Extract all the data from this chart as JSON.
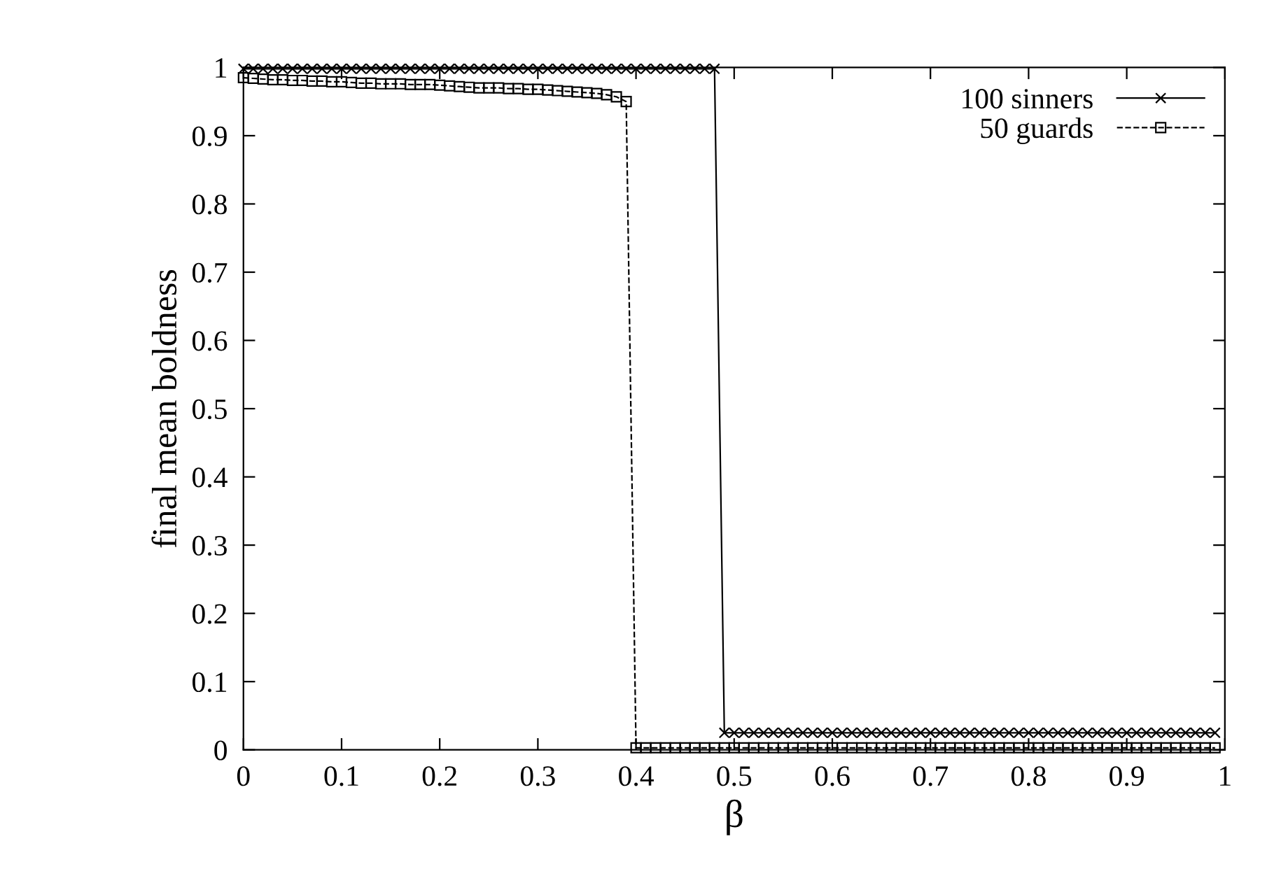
{
  "chart_data": {
    "type": "line",
    "xlabel": "β",
    "ylabel": "final mean boldness",
    "x": [
      0,
      0.01,
      0.02,
      0.03,
      0.04,
      0.05,
      0.06,
      0.07,
      0.08,
      0.09,
      0.1,
      0.11,
      0.12,
      0.13,
      0.14,
      0.15,
      0.16,
      0.17,
      0.18,
      0.19,
      0.2,
      0.21,
      0.22,
      0.23,
      0.24,
      0.25,
      0.26,
      0.27,
      0.28,
      0.29,
      0.3,
      0.31,
      0.32,
      0.33,
      0.34,
      0.35,
      0.36,
      0.37,
      0.38,
      0.39,
      0.4,
      0.41,
      0.42,
      0.43,
      0.44,
      0.45,
      0.46,
      0.47,
      0.48,
      0.49,
      0.5,
      0.51,
      0.52,
      0.53,
      0.54,
      0.55,
      0.56,
      0.57,
      0.58,
      0.59,
      0.6,
      0.61,
      0.62,
      0.63,
      0.64,
      0.65,
      0.66,
      0.67,
      0.68,
      0.69,
      0.7,
      0.71,
      0.72,
      0.73,
      0.74,
      0.75,
      0.76,
      0.77,
      0.78,
      0.79,
      0.8,
      0.81,
      0.82,
      0.83,
      0.84,
      0.85,
      0.86,
      0.87,
      0.88,
      0.89,
      0.9,
      0.91,
      0.92,
      0.93,
      0.94,
      0.95,
      0.96,
      0.97,
      0.98,
      0.99
    ],
    "series": [
      {
        "name": "100 sinners",
        "color": "#000000",
        "marker": "cross",
        "line_style": "solid",
        "values": [
          0.998,
          0.998,
          0.998,
          0.998,
          0.998,
          0.998,
          0.998,
          0.998,
          0.998,
          0.998,
          0.998,
          0.998,
          0.998,
          0.998,
          0.998,
          0.998,
          0.998,
          0.998,
          0.998,
          0.998,
          0.998,
          0.998,
          0.998,
          0.998,
          0.998,
          0.998,
          0.998,
          0.998,
          0.998,
          0.998,
          0.998,
          0.998,
          0.998,
          0.998,
          0.998,
          0.998,
          0.998,
          0.998,
          0.998,
          0.998,
          0.998,
          0.998,
          0.998,
          0.998,
          0.998,
          0.998,
          0.998,
          0.998,
          0.998,
          0.025,
          0.025,
          0.025,
          0.025,
          0.025,
          0.025,
          0.025,
          0.025,
          0.025,
          0.025,
          0.025,
          0.025,
          0.025,
          0.025,
          0.025,
          0.025,
          0.025,
          0.025,
          0.025,
          0.025,
          0.025,
          0.025,
          0.025,
          0.025,
          0.025,
          0.025,
          0.025,
          0.025,
          0.025,
          0.025,
          0.025,
          0.025,
          0.025,
          0.025,
          0.025,
          0.025,
          0.025,
          0.025,
          0.025,
          0.025,
          0.025,
          0.025,
          0.025,
          0.025,
          0.025,
          0.025,
          0.025,
          0.025,
          0.025,
          0.025,
          0.025
        ]
      },
      {
        "name": "50 guards",
        "color": "#000000",
        "marker": "square",
        "line_style": "dashed",
        "values": [
          0.985,
          0.984,
          0.983,
          0.982,
          0.982,
          0.981,
          0.981,
          0.98,
          0.98,
          0.979,
          0.979,
          0.978,
          0.977,
          0.977,
          0.976,
          0.976,
          0.976,
          0.975,
          0.975,
          0.975,
          0.974,
          0.973,
          0.972,
          0.971,
          0.97,
          0.97,
          0.97,
          0.969,
          0.969,
          0.968,
          0.968,
          0.967,
          0.966,
          0.965,
          0.964,
          0.963,
          0.962,
          0.96,
          0.957,
          0.95,
          0.003,
          0.003,
          0.003,
          0.003,
          0.003,
          0.003,
          0.003,
          0.003,
          0.003,
          0.003,
          0.003,
          0.003,
          0.003,
          0.003,
          0.003,
          0.003,
          0.003,
          0.003,
          0.003,
          0.003,
          0.003,
          0.003,
          0.003,
          0.003,
          0.003,
          0.003,
          0.003,
          0.003,
          0.003,
          0.003,
          0.003,
          0.003,
          0.003,
          0.003,
          0.003,
          0.003,
          0.003,
          0.003,
          0.003,
          0.003,
          0.003,
          0.003,
          0.003,
          0.003,
          0.003,
          0.003,
          0.003,
          0.003,
          0.003,
          0.003,
          0.003,
          0.003,
          0.003,
          0.003,
          0.003,
          0.003,
          0.003,
          0.003,
          0.003,
          0.003
        ]
      }
    ],
    "xlim": [
      0,
      1
    ],
    "xticks": [
      0,
      0.1,
      0.2,
      0.3,
      0.4,
      0.5,
      0.6,
      0.7,
      0.8,
      0.9,
      1
    ],
    "ylim": [
      0,
      1
    ],
    "yticks": [
      0,
      0.1,
      0.2,
      0.3,
      0.4,
      0.5,
      0.6,
      0.7,
      0.8,
      0.9,
      1
    ],
    "grid": false,
    "legend": "top right"
  }
}
